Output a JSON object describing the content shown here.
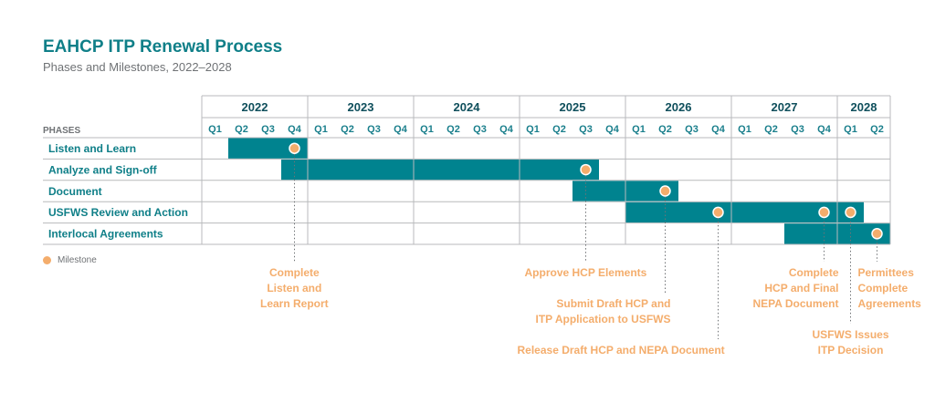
{
  "title": "EAHCP ITP Renewal Process",
  "subtitle": "Phases and Milestones, 2022–2028",
  "legend_label": "Milestone",
  "colors": {
    "bar": "#00838f",
    "milestone": "#f4ad6c",
    "grid": "#b8babc",
    "year_text": "#0f4f5c",
    "quarter_text": "#1a7f8c",
    "phase_text": "#0f7f88"
  },
  "chart_data": {
    "type": "gantt",
    "title": "EAHCP ITP Renewal Process",
    "subtitle": "Phases and Milestones, 2022–2028",
    "row_header": "PHASES",
    "years": [
      {
        "label": "2022",
        "quarters": [
          "Q1",
          "Q2",
          "Q3",
          "Q4"
        ]
      },
      {
        "label": "2023",
        "quarters": [
          "Q1",
          "Q2",
          "Q3",
          "Q4"
        ]
      },
      {
        "label": "2024",
        "quarters": [
          "Q1",
          "Q2",
          "Q3",
          "Q4"
        ]
      },
      {
        "label": "2025",
        "quarters": [
          "Q1",
          "Q2",
          "Q3",
          "Q4"
        ]
      },
      {
        "label": "2026",
        "quarters": [
          "Q1",
          "Q2",
          "Q3",
          "Q4"
        ]
      },
      {
        "label": "2027",
        "quarters": [
          "Q1",
          "Q2",
          "Q3",
          "Q4"
        ]
      },
      {
        "label": "2028",
        "quarters": [
          "Q1",
          "Q2"
        ]
      }
    ],
    "phases": [
      {
        "name": "Listen and Learn",
        "start": "2022 Q2",
        "end": "2022 Q4"
      },
      {
        "name": "Analyze and Sign-off",
        "start": "2022 Q4",
        "end": "2025 Q3"
      },
      {
        "name": "Document",
        "start": "2025 Q3",
        "end": "2026 Q2"
      },
      {
        "name": "USFWS Review and Action",
        "start": "2026 Q1",
        "end": "2028 Q1"
      },
      {
        "name": "Interlocal Agreements",
        "start": "2027 Q3",
        "end": "2028 Q2"
      }
    ],
    "milestones": [
      {
        "phase": "Listen and Learn",
        "date": "2022 Q4",
        "label": [
          "Complete",
          "Listen and",
          "Learn Report"
        ]
      },
      {
        "phase": "Analyze and Sign-off",
        "date": "2025 Q3",
        "label": [
          "Approve HCP Elements"
        ]
      },
      {
        "phase": "Document",
        "date": "2026 Q2",
        "label": [
          "Submit Draft HCP and",
          "ITP Application to USFWS"
        ]
      },
      {
        "phase": "USFWS Review and Action",
        "date": "2026 Q4",
        "label": [
          "Release Draft HCP and NEPA Document"
        ]
      },
      {
        "phase": "USFWS Review and Action",
        "date": "2027 Q4",
        "label": [
          "Complete",
          "HCP and Final",
          "NEPA Document"
        ]
      },
      {
        "phase": "USFWS Review and Action",
        "date": "2028 Q1",
        "label": [
          "USFWS Issues",
          "ITP Decision"
        ]
      },
      {
        "phase": "Interlocal Agreements",
        "date": "2028 Q2",
        "label": [
          "Permittees",
          "Complete",
          "Agreements"
        ]
      }
    ]
  }
}
